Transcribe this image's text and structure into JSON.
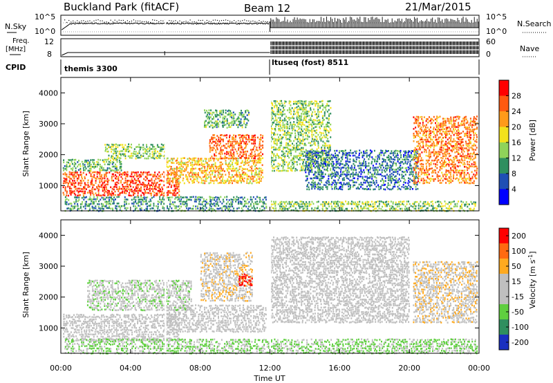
{
  "header": {
    "station": "Buckland Park (fitACF)",
    "beam": "Beam 12",
    "date": "21/Mar/2015"
  },
  "aux_panels": {
    "nsky_label": "N.Sky",
    "nsky_ticks": [
      "10^5",
      "10^0"
    ],
    "nsearch_label": "N.Search",
    "nsearch_ticks": [
      "10^5",
      "10^0"
    ],
    "freq_label_1": "Freq.",
    "freq_label_2": "[MHz]",
    "freq_ticks": [
      "12",
      "8"
    ],
    "nave_label": "Nave",
    "nave_ticks": [
      "60",
      "0"
    ],
    "cpid_label": "CPID",
    "cpid_segments": [
      {
        "name": "themis 3300",
        "start_hour": 0,
        "end_hour": 12
      },
      {
        "name": "ltuseq (fost) 8511",
        "start_hour": 12,
        "end_hour": 24
      }
    ]
  },
  "chart_data": [
    {
      "type": "heatmap",
      "title": "",
      "xlabel": "Time UT",
      "ylabel": "Slant Range [km]",
      "xlim": [
        0,
        24
      ],
      "ylim": [
        180,
        4500
      ],
      "y_ticks": [
        "1000",
        "2000",
        "3000",
        "4000"
      ],
      "colorbar": {
        "label": "Power [dB]",
        "range": [
          0,
          32
        ],
        "ticks": [
          "4",
          "8",
          "12",
          "16",
          "20",
          "24",
          "28"
        ],
        "colors": [
          "#0000ff",
          "#1f4fb4",
          "#2f8f5f",
          "#8fd35a",
          "#f2e11c",
          "#ff9a1a",
          "#ff5a10",
          "#ff0000"
        ]
      },
      "regions": [
        {
          "t0": 0.1,
          "t1": 6.8,
          "r0": 700,
          "r1": 1500,
          "value": 27
        },
        {
          "t0": 0.1,
          "t1": 3.5,
          "r0": 1500,
          "r1": 1900,
          "value": 12
        },
        {
          "t0": 2.5,
          "t1": 6.0,
          "r0": 1900,
          "r1": 2400,
          "value": 14
        },
        {
          "t0": 6.0,
          "t1": 11.6,
          "r0": 1100,
          "r1": 1950,
          "value": 20
        },
        {
          "t0": 8.5,
          "t1": 11.6,
          "r0": 1900,
          "r1": 2700,
          "value": 25
        },
        {
          "t0": 8.2,
          "t1": 10.8,
          "r0": 2900,
          "r1": 3500,
          "value": 12
        },
        {
          "t0": 0.2,
          "t1": 11.8,
          "r0": 200,
          "r1": 700,
          "value": 10
        },
        {
          "t0": 12.0,
          "t1": 15.5,
          "r0": 1500,
          "r1": 3800,
          "value": 14
        },
        {
          "t0": 14.0,
          "t1": 20.5,
          "r0": 900,
          "r1": 2200,
          "value": 8
        },
        {
          "t0": 20.2,
          "t1": 23.9,
          "r0": 1100,
          "r1": 3300,
          "value": 24
        },
        {
          "t0": 12.0,
          "t1": 23.9,
          "r0": 200,
          "r1": 550,
          "value": 14
        }
      ]
    },
    {
      "type": "heatmap",
      "title": "",
      "xlabel": "Time UT",
      "ylabel": "Slant Range [km]",
      "xlim": [
        0,
        24
      ],
      "ylim": [
        180,
        4500
      ],
      "x_ticks": [
        "00:00",
        "04:00",
        "08:00",
        "12:00",
        "16:00",
        "20:00",
        "00:00"
      ],
      "y_ticks": [
        "1000",
        "2000",
        "3000",
        "4000"
      ],
      "colorbar": {
        "label": "Velocity [m s-1]",
        "label_main": "Velocity [m s",
        "label_sup": "-1",
        "label_end": "]",
        "range": [
          -250,
          250
        ],
        "ticks": [
          "200",
          "100",
          "50",
          "15",
          "-15",
          "-50",
          "-100",
          "-200"
        ],
        "colors": [
          "#1a2fc0",
          "#2f8f5f",
          "#5fcf3f",
          "#bfbfbf",
          "#bfbfbf",
          "#ffaa20",
          "#ff6a10",
          "#ff0000"
        ]
      },
      "regions": [
        {
          "t0": 0.1,
          "t1": 6.8,
          "r0": 600,
          "r1": 1500,
          "value": 0
        },
        {
          "t0": 6.0,
          "t1": 11.8,
          "r0": 900,
          "r1": 1800,
          "value": 0
        },
        {
          "t0": 1.5,
          "t1": 7.5,
          "r0": 1600,
          "r1": 2600,
          "value": -40
        },
        {
          "t0": 8.0,
          "t1": 11.0,
          "r0": 1900,
          "r1": 3500,
          "value": 40
        },
        {
          "t0": 10.2,
          "t1": 11.0,
          "r0": 2400,
          "r1": 2800,
          "value": 210
        },
        {
          "t0": 12.0,
          "t1": 20.0,
          "r0": 1200,
          "r1": 4000,
          "value": 0
        },
        {
          "t0": 20.2,
          "t1": 23.9,
          "r0": 1200,
          "r1": 3200,
          "value": 45
        },
        {
          "t0": 0.2,
          "t1": 23.9,
          "r0": 200,
          "r1": 700,
          "value": -70
        }
      ]
    }
  ]
}
